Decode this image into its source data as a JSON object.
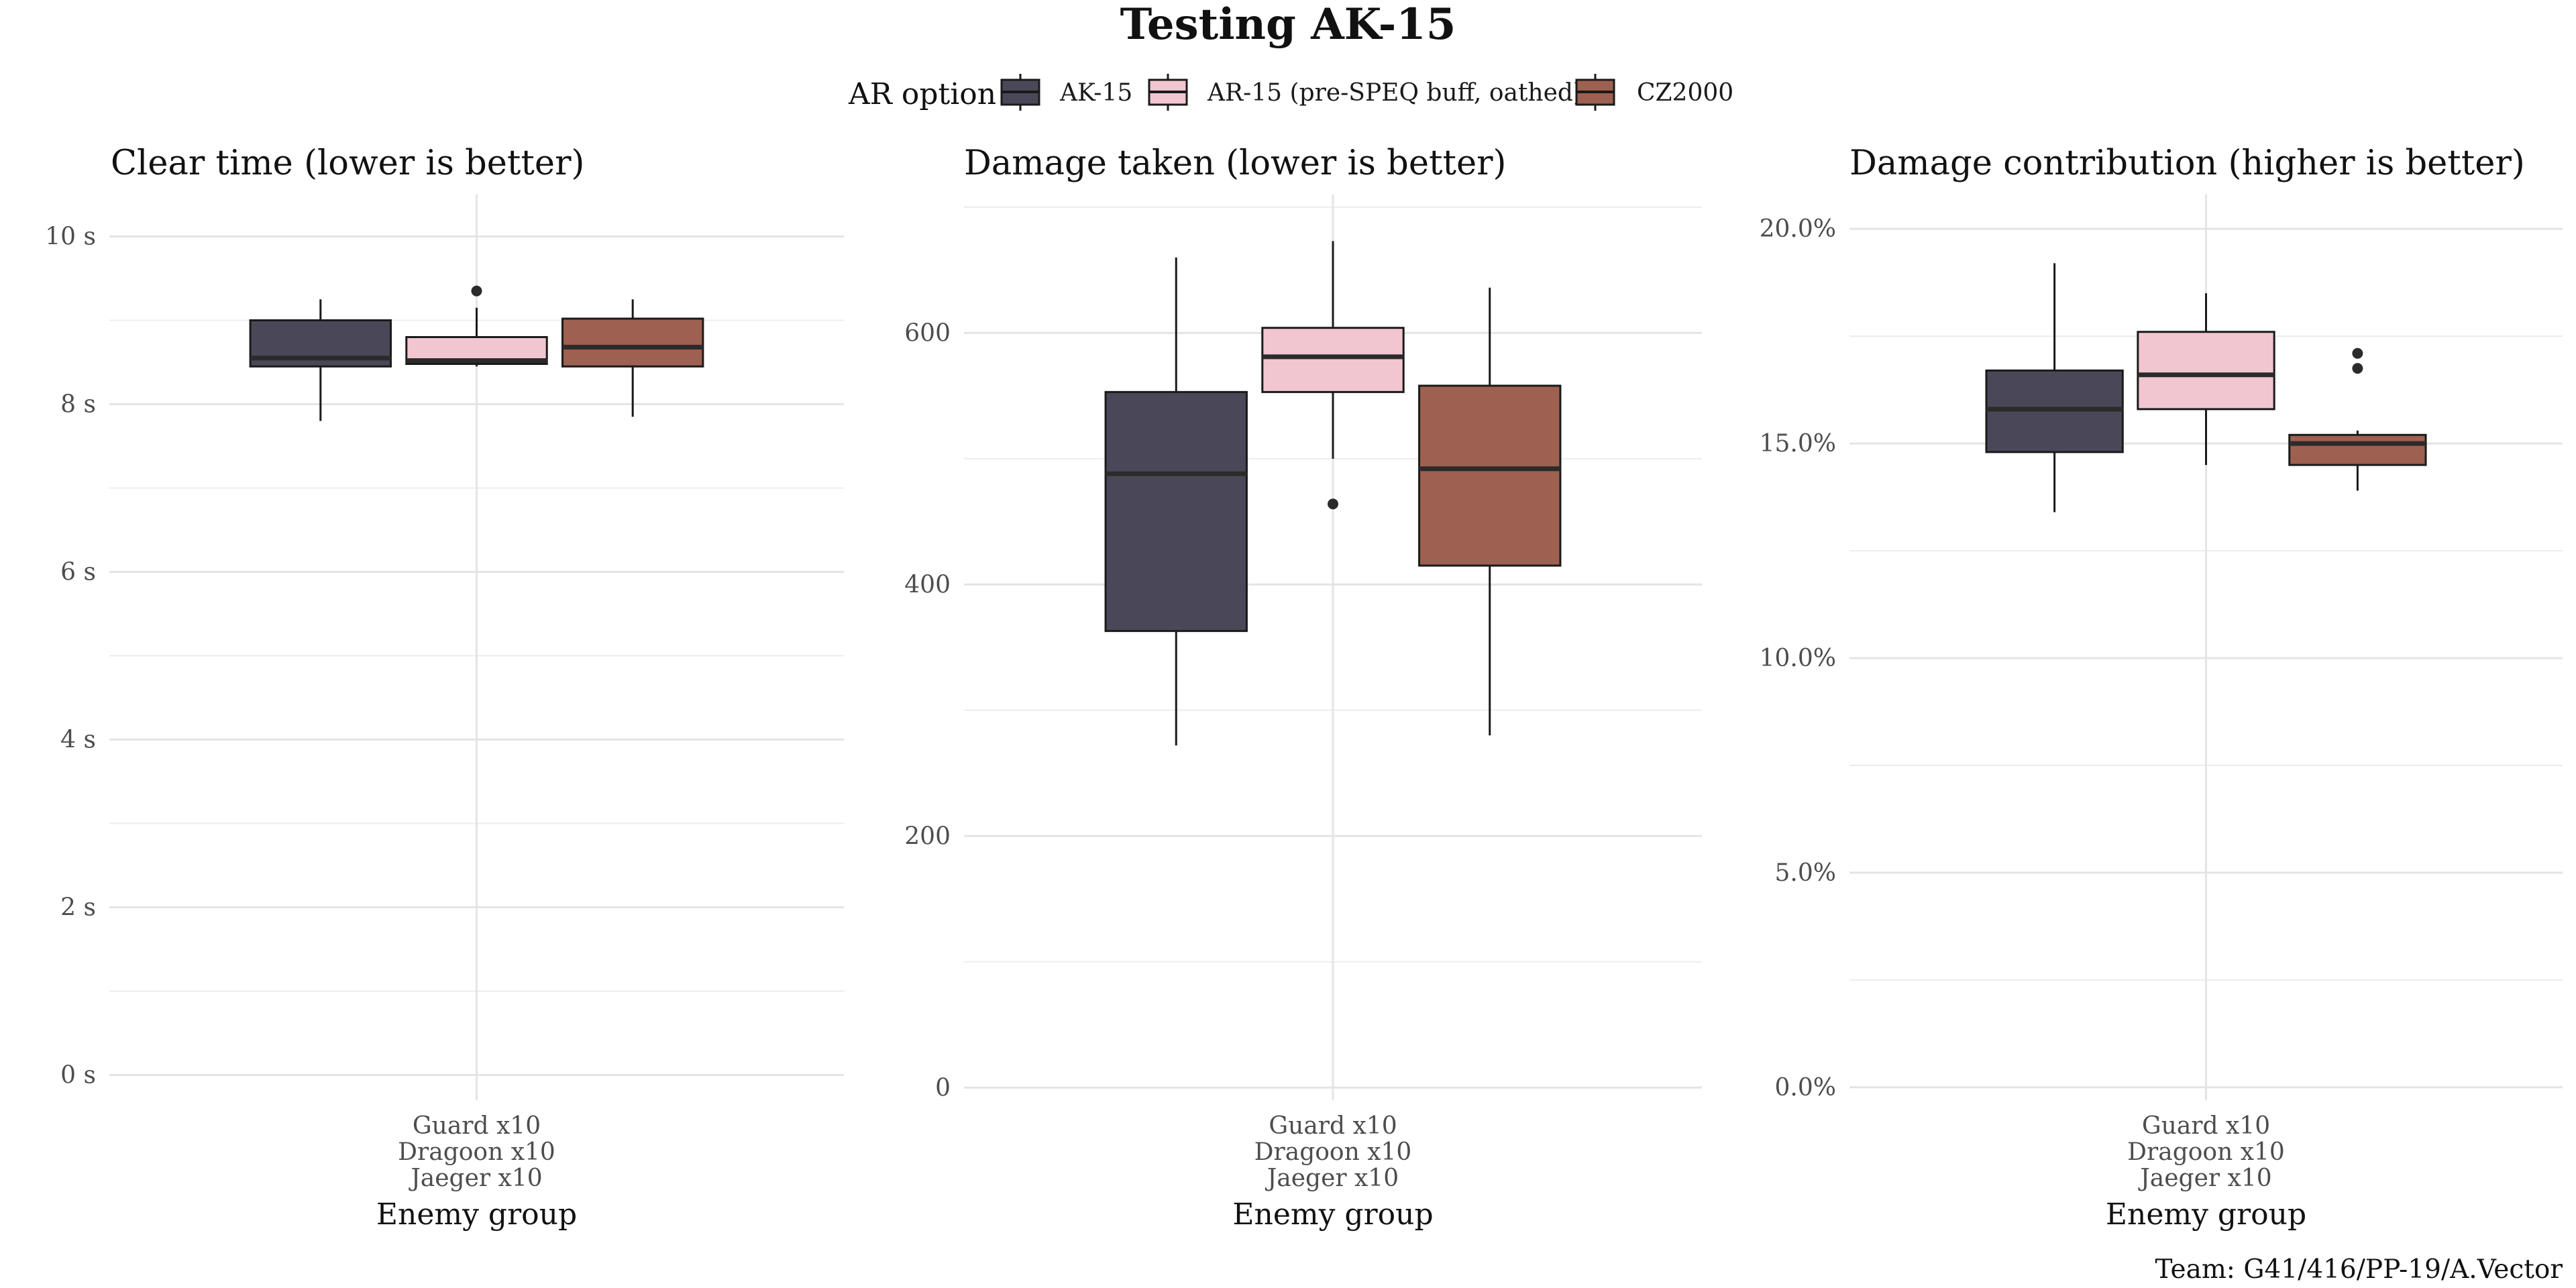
{
  "title": "Testing AK-15",
  "caption": "Team: G41/416/PP-19/A.Vector",
  "legend": {
    "title": "AR option",
    "placement": "top",
    "entries": [
      {
        "label": "AK-15",
        "color": "#4a4858"
      },
      {
        "label": "AR-15 (pre-SPEQ buff, oathed)",
        "color": "#f2c6d0"
      },
      {
        "label": "CZ2000",
        "color": "#9e6050"
      }
    ]
  },
  "chart_data": [
    {
      "type": "box",
      "title": "Clear time (lower is better)",
      "xlabel": "Enemy group",
      "category_lines": [
        "Guard x10",
        "Dragoon x10",
        "Jaeger x10"
      ],
      "ylim": [
        -0.3,
        10.5
      ],
      "yticks": [
        0,
        2,
        4,
        6,
        8,
        10
      ],
      "ytick_labels": [
        "0 s",
        "2 s",
        "4 s",
        "6 s",
        "8 s",
        "10 s"
      ],
      "grid": true,
      "series": [
        {
          "name": "AK-15",
          "lower": 7.8,
          "q1": 8.45,
          "median": 8.55,
          "q3": 9.0,
          "upper": 9.25,
          "outliers": []
        },
        {
          "name": "AR-15 (pre-SPEQ buff, oathed)",
          "lower": 8.45,
          "q1": 8.48,
          "median": 8.52,
          "q3": 8.8,
          "upper": 9.15,
          "outliers": [
            9.35
          ]
        },
        {
          "name": "CZ2000",
          "lower": 7.85,
          "q1": 8.45,
          "median": 8.68,
          "q3": 9.02,
          "upper": 9.25,
          "outliers": []
        }
      ]
    },
    {
      "type": "box",
      "title": "Damage taken (lower is better)",
      "xlabel": "Enemy group",
      "category_lines": [
        "Guard x10",
        "Dragoon x10",
        "Jaeger x10"
      ],
      "ylim": [
        -10,
        710
      ],
      "yticks": [
        0,
        200,
        400,
        600
      ],
      "ytick_labels": [
        "0",
        "200",
        "400",
        "600"
      ],
      "grid": true,
      "series": [
        {
          "name": "AK-15",
          "lower": 272,
          "q1": 363,
          "median": 488,
          "q3": 553,
          "upper": 660,
          "outliers": []
        },
        {
          "name": "AR-15 (pre-SPEQ buff, oathed)",
          "lower": 500,
          "q1": 553,
          "median": 581,
          "q3": 604,
          "upper": 673,
          "outliers": [
            464
          ]
        },
        {
          "name": "CZ2000",
          "lower": 280,
          "q1": 415,
          "median": 492,
          "q3": 558,
          "upper": 636,
          "outliers": []
        }
      ]
    },
    {
      "type": "box",
      "title": "Damage contribution (higher is better)",
      "xlabel": "Enemy group",
      "category_lines": [
        "Guard x10",
        "Dragoon x10",
        "Jaeger x10"
      ],
      "ylim": [
        -0.3,
        20.8
      ],
      "yticks": [
        0,
        5,
        10,
        15,
        20
      ],
      "ytick_labels": [
        "0.0%",
        "5.0%",
        "10.0%",
        "15.0%",
        "20.0%"
      ],
      "grid": true,
      "series": [
        {
          "name": "AK-15",
          "lower": 13.4,
          "q1": 14.8,
          "median": 15.8,
          "q3": 16.7,
          "upper": 19.2,
          "outliers": []
        },
        {
          "name": "AR-15 (pre-SPEQ buff, oathed)",
          "lower": 14.5,
          "q1": 15.8,
          "median": 16.6,
          "q3": 17.6,
          "upper": 18.5,
          "outliers": []
        },
        {
          "name": "CZ2000",
          "lower": 13.9,
          "q1": 14.5,
          "median": 15.0,
          "q3": 15.2,
          "upper": 15.3,
          "outliers": [
            17.1,
            16.75
          ]
        }
      ]
    }
  ]
}
